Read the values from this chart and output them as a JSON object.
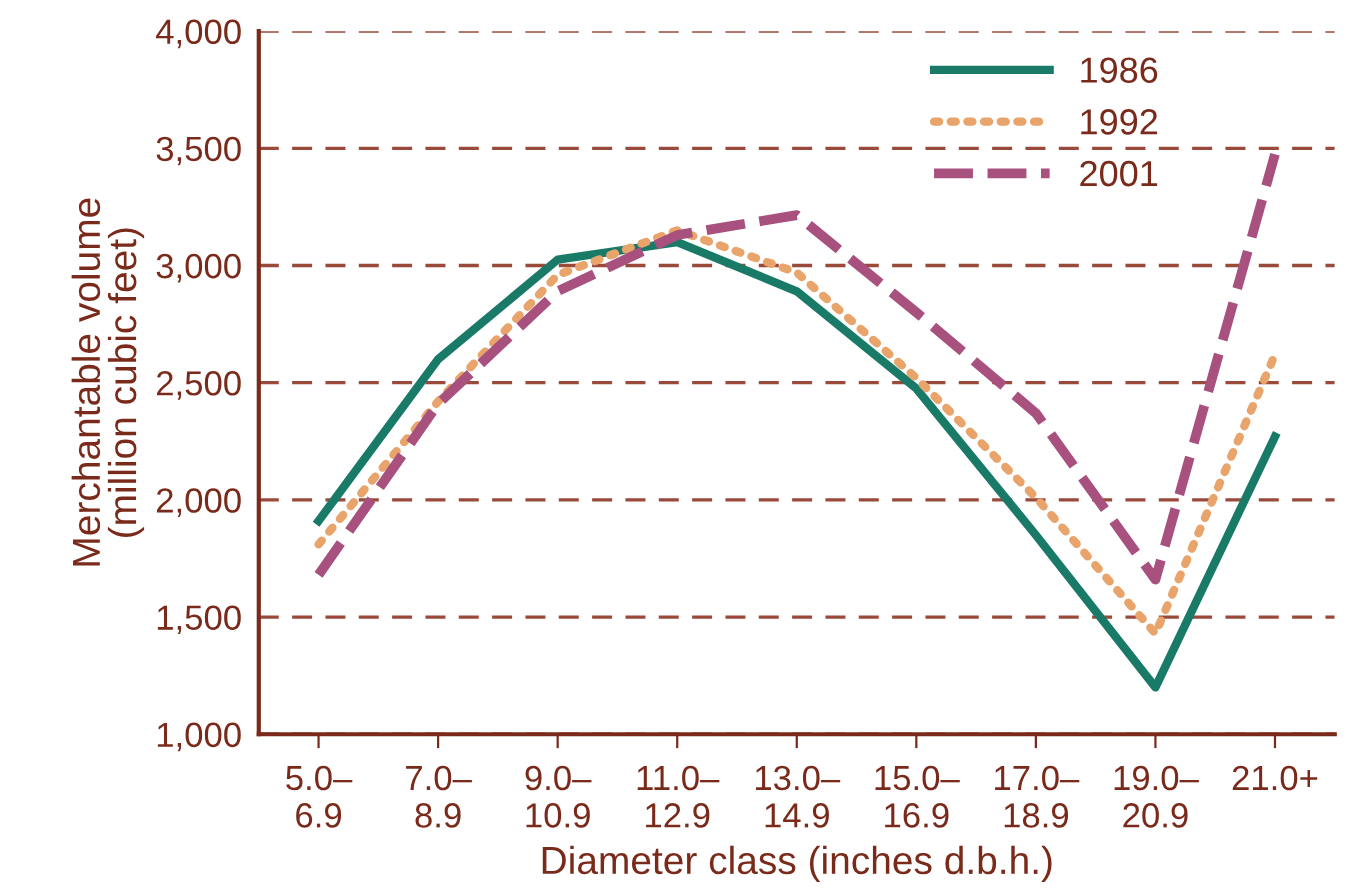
{
  "chart_data": {
    "type": "line",
    "xlabel": "Diameter class (inches d.b.h.)",
    "ylabel": "Merchantable volume\n(million cubic feet)",
    "categories": [
      "5.0–\n6.9",
      "7.0–\n8.9",
      "9.0–\n10.9",
      "11.0–\n12.9",
      "13.0–\n14.9",
      "15.0–\n16.9",
      "17.0–\n18.9",
      "19.0–\n20.9",
      "21.0+"
    ],
    "series": [
      {
        "name": "1986",
        "color": "#1a7a68",
        "line_style": "solid",
        "values": [
          1910,
          2600,
          3025,
          3100,
          2890,
          2475,
          1850,
          1200,
          2270
        ]
      },
      {
        "name": "1992",
        "color": "#e8a46a",
        "line_style": "dotted",
        "values": [
          1810,
          2420,
          2960,
          3150,
          2970,
          2520,
          2010,
          1430,
          2620
        ]
      },
      {
        "name": "2001",
        "color": "#a8507e",
        "line_style": "dashed",
        "values": [
          1680,
          2410,
          2890,
          3130,
          3215,
          2800,
          2370,
          1660,
          3475
        ]
      }
    ],
    "ylim": [
      1000,
      4000
    ],
    "yticks": [
      {
        "value": 1000,
        "label": "1,000"
      },
      {
        "value": 1500,
        "label": "1,500"
      },
      {
        "value": 2000,
        "label": "2,000"
      },
      {
        "value": 2500,
        "label": "2,500"
      },
      {
        "value": 3000,
        "label": "3,000"
      },
      {
        "value": 3500,
        "label": "3,500"
      },
      {
        "value": 4000,
        "label": "4,000"
      }
    ],
    "grid": "y",
    "legend": "top right",
    "marker": "none"
  }
}
